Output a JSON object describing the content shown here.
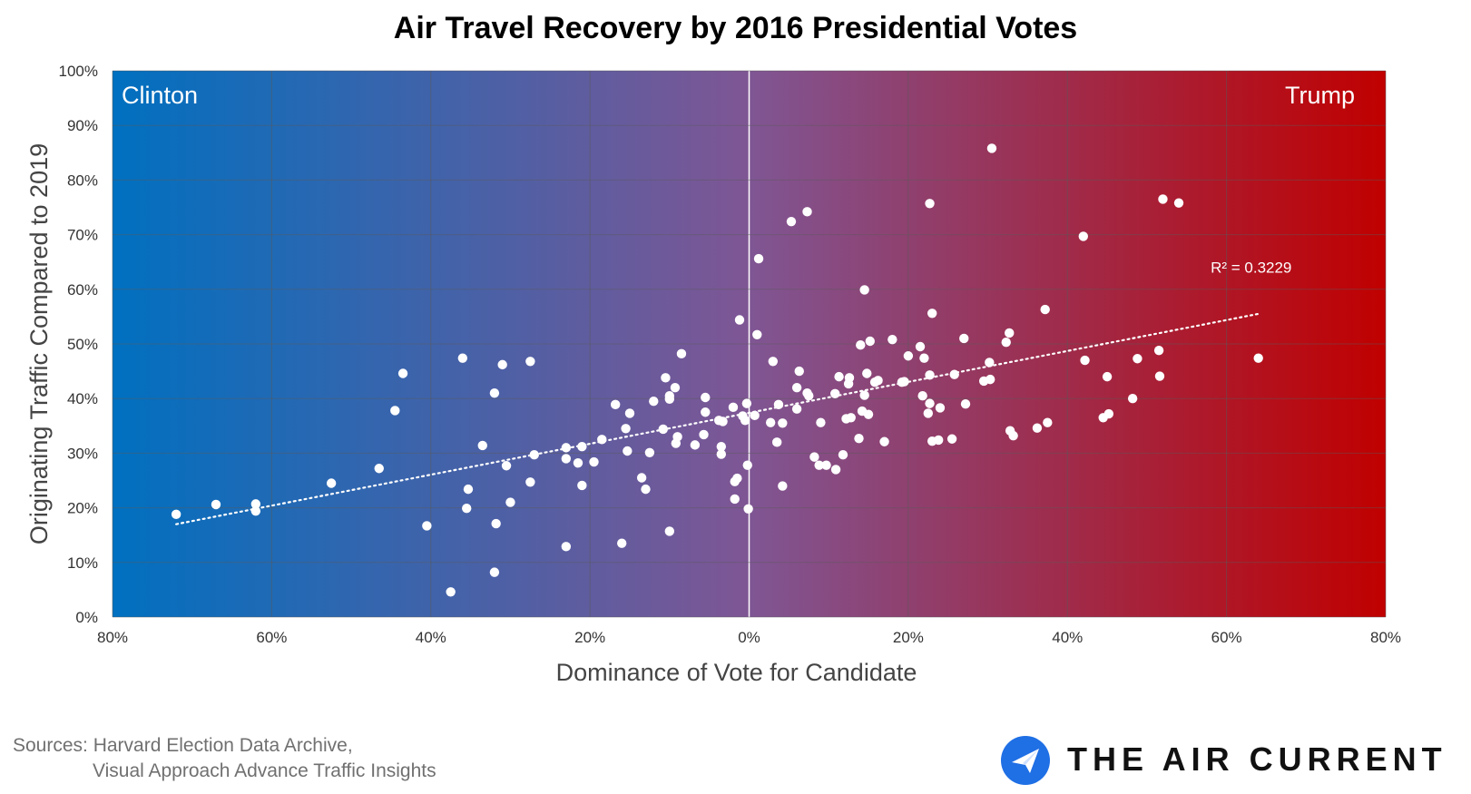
{
  "chart_data": {
    "type": "scatter",
    "title": "Air Travel Recovery by 2016 Presidential Votes",
    "xlabel": "Dominance of Vote for Candidate",
    "ylabel": "Originating Traffic Compared to 2019",
    "xlim": [
      -80,
      80
    ],
    "ylim": [
      0,
      100
    ],
    "x_ticks": [
      -80,
      -60,
      -40,
      -20,
      0,
      20,
      40,
      60,
      80
    ],
    "x_tick_labels": [
      "80%",
      "60%",
      "40%",
      "20%",
      "0%",
      "20%",
      "40%",
      "60%",
      "80%"
    ],
    "y_ticks": [
      0,
      10,
      20,
      30,
      40,
      50,
      60,
      70,
      80,
      90,
      100
    ],
    "y_tick_labels": [
      "0%",
      "10%",
      "20%",
      "30%",
      "40%",
      "50%",
      "60%",
      "70%",
      "80%",
      "90%",
      "100%"
    ],
    "grid": true,
    "region_labels": {
      "left": "Clinton",
      "right": "Trump"
    },
    "gradient_colors": {
      "left": "#0070C0",
      "middle": "#7F5694",
      "right": "#C00000"
    },
    "trendline": {
      "x": [
        -72,
        64
      ],
      "y": [
        17,
        55.5
      ],
      "style": "dotted",
      "label": "R² = 0.3229"
    },
    "points": [
      [
        -72,
        18.8
      ],
      [
        -67,
        20.6
      ],
      [
        -62,
        20.7
      ],
      [
        -62,
        19.4
      ],
      [
        -52.5,
        24.5
      ],
      [
        -46.5,
        27.2
      ],
      [
        -44.5,
        37.8
      ],
      [
        -43.5,
        44.6
      ],
      [
        -40.5,
        16.7
      ],
      [
        -37.5,
        4.6
      ],
      [
        -36,
        47.4
      ],
      [
        -35.5,
        19.9
      ],
      [
        -35.3,
        23.4
      ],
      [
        -33.5,
        31.4
      ],
      [
        -32,
        41
      ],
      [
        -32,
        8.2
      ],
      [
        -31.8,
        17.1
      ],
      [
        -31,
        46.2
      ],
      [
        -30.5,
        27.7
      ],
      [
        -30,
        21
      ],
      [
        -27.5,
        46.8
      ],
      [
        -27.5,
        24.7
      ],
      [
        -27,
        29.7
      ],
      [
        -23,
        31
      ],
      [
        -23,
        29
      ],
      [
        -23,
        12.9
      ],
      [
        -21.5,
        28.2
      ],
      [
        -21,
        31.2
      ],
      [
        -21,
        24.1
      ],
      [
        -19.5,
        28.4
      ],
      [
        -18.5,
        32.5
      ],
      [
        -16.8,
        38.9
      ],
      [
        -16,
        13.5
      ],
      [
        -15.5,
        34.5
      ],
      [
        -15.3,
        30.4
      ],
      [
        -15,
        37.3
      ],
      [
        -13.5,
        25.5
      ],
      [
        -13,
        23.4
      ],
      [
        -12.5,
        30.1
      ],
      [
        -12,
        39.5
      ],
      [
        -10.8,
        34.4
      ],
      [
        -10.5,
        43.8
      ],
      [
        -10,
        40.5
      ],
      [
        -10,
        39.9
      ],
      [
        -10,
        15.7
      ],
      [
        -9.3,
        42
      ],
      [
        -9.2,
        31.8
      ],
      [
        -9,
        33
      ],
      [
        -8.5,
        48.2
      ],
      [
        -6.8,
        31.5
      ],
      [
        -5.7,
        33.4
      ],
      [
        -5.5,
        40.2
      ],
      [
        -5.5,
        37.5
      ],
      [
        -3.8,
        36
      ],
      [
        -3.5,
        31.2
      ],
      [
        -3.5,
        29.8
      ],
      [
        -3.3,
        35.8
      ],
      [
        -2,
        38.4
      ],
      [
        -1.8,
        24.8
      ],
      [
        -1.8,
        21.6
      ],
      [
        -1.5,
        25.4
      ],
      [
        -1.2,
        54.4
      ],
      [
        -0.8,
        36.8
      ],
      [
        -0.5,
        36
      ],
      [
        -0.3,
        39.1
      ],
      [
        -0.2,
        27.8
      ],
      [
        -0.1,
        19.8
      ],
      [
        0.7,
        36.9
      ],
      [
        1,
        51.7
      ],
      [
        1.2,
        65.6
      ],
      [
        2.7,
        35.6
      ],
      [
        3,
        46.8
      ],
      [
        3.5,
        32
      ],
      [
        3.7,
        38.9
      ],
      [
        4.2,
        24
      ],
      [
        4.2,
        35.5
      ],
      [
        5.3,
        72.4
      ],
      [
        6,
        38.1
      ],
      [
        6,
        42
      ],
      [
        6.3,
        45
      ],
      [
        7.3,
        74.2
      ],
      [
        7.3,
        41
      ],
      [
        7.5,
        40.5
      ],
      [
        8.2,
        29.3
      ],
      [
        8.8,
        27.8
      ],
      [
        9,
        35.6
      ],
      [
        9.7,
        27.8
      ],
      [
        10.8,
        40.9
      ],
      [
        10.9,
        27
      ],
      [
        11.3,
        44
      ],
      [
        11.8,
        29.7
      ],
      [
        12.2,
        36.3
      ],
      [
        12.5,
        42.7
      ],
      [
        12.6,
        43.8
      ],
      [
        12.8,
        36.5
      ],
      [
        13.8,
        32.7
      ],
      [
        14,
        49.8
      ],
      [
        14.2,
        37.7
      ],
      [
        14.5,
        40.6
      ],
      [
        14.5,
        59.9
      ],
      [
        14.8,
        44.6
      ],
      [
        15,
        37.1
      ],
      [
        15.2,
        50.5
      ],
      [
        15.8,
        43
      ],
      [
        16.2,
        43.3
      ],
      [
        17,
        32.1
      ],
      [
        18,
        50.8
      ],
      [
        19.2,
        43
      ],
      [
        19.5,
        43.1
      ],
      [
        20,
        47.8
      ],
      [
        21.5,
        49.5
      ],
      [
        21.8,
        40.5
      ],
      [
        22,
        47.4
      ],
      [
        22.5,
        37.3
      ],
      [
        22.7,
        44.3
      ],
      [
        22.7,
        39.1
      ],
      [
        22.7,
        75.7
      ],
      [
        23,
        32.2
      ],
      [
        23,
        55.6
      ],
      [
        23.8,
        32.4
      ],
      [
        24,
        38.3
      ],
      [
        25.5,
        32.6
      ],
      [
        25.8,
        44.4
      ],
      [
        27,
        51
      ],
      [
        27.2,
        39
      ],
      [
        29.5,
        43.2
      ],
      [
        30.2,
        46.6
      ],
      [
        30.3,
        43.5
      ],
      [
        30.5,
        85.8
      ],
      [
        32.3,
        50.3
      ],
      [
        32.7,
        52
      ],
      [
        32.8,
        34.1
      ],
      [
        33.2,
        33.2
      ],
      [
        36.2,
        34.6
      ],
      [
        37.2,
        56.3
      ],
      [
        37.5,
        35.6
      ],
      [
        42,
        69.7
      ],
      [
        42.2,
        47
      ],
      [
        44.5,
        36.5
      ],
      [
        45,
        44
      ],
      [
        45.2,
        37.2
      ],
      [
        48.2,
        40
      ],
      [
        48.8,
        47.3
      ],
      [
        51.5,
        48.8
      ],
      [
        51.6,
        44.1
      ],
      [
        52,
        76.5
      ],
      [
        54,
        75.8
      ],
      [
        64,
        47.4
      ]
    ]
  },
  "source": {
    "line1": "Sources: Harvard Election Data Archive,",
    "line2": "Visual Approach Advance Traffic Insights"
  },
  "logo": {
    "text": "THE AIR CURRENT",
    "icon": "paper-plane-icon",
    "icon_color": "#1F6FE5"
  }
}
